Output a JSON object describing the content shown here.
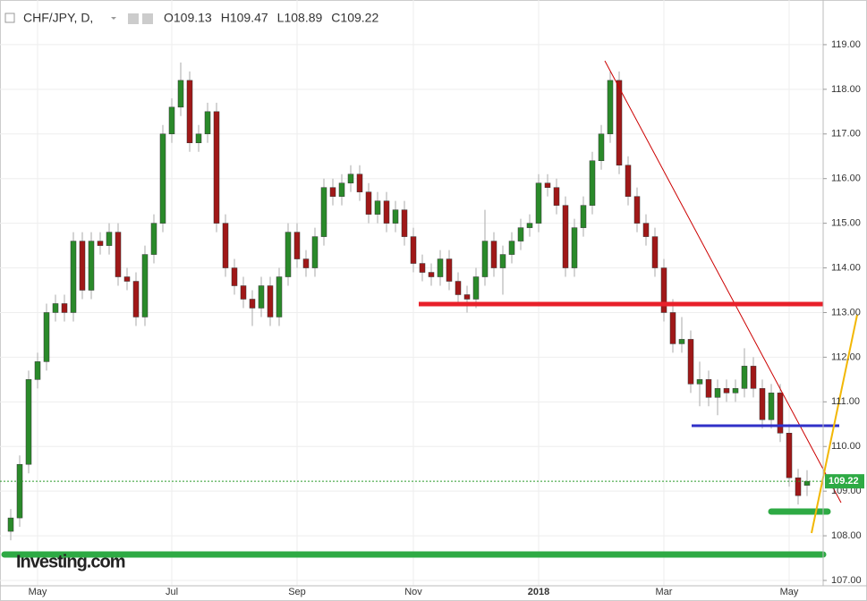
{
  "chart_data": {
    "type": "candlestick",
    "title": "CHF/JPY, D,",
    "quote": [
      {
        "label": "O",
        "value": 109.13
      },
      {
        "label": "H",
        "value": 109.47
      },
      {
        "label": "L",
        "value": 108.89
      },
      {
        "label": "C",
        "value": 109.22
      }
    ],
    "watermark": "Investing.com",
    "categories": [
      null,
      null,
      null,
      "May",
      null,
      null,
      null,
      null,
      null,
      null,
      null,
      null,
      null,
      null,
      null,
      null,
      null,
      null,
      "Jul",
      null,
      null,
      null,
      null,
      null,
      null,
      null,
      null,
      null,
      null,
      null,
      null,
      null,
      "Sep",
      null,
      null,
      null,
      null,
      null,
      null,
      null,
      null,
      null,
      null,
      null,
      null,
      "Nov",
      null,
      null,
      null,
      null,
      null,
      null,
      null,
      null,
      null,
      null,
      null,
      null,
      null,
      "2018",
      null,
      null,
      null,
      null,
      null,
      null,
      null,
      null,
      null,
      null,
      null,
      null,
      null,
      "Mar",
      null,
      null,
      null,
      null,
      null,
      null,
      null,
      null,
      null,
      null,
      null,
      null,
      null,
      "May",
      null,
      null
    ],
    "open": [
      108.1,
      108.4,
      109.6,
      111.5,
      111.9,
      113.0,
      113.2,
      113.0,
      114.6,
      113.5,
      114.6,
      114.5,
      114.8,
      113.8,
      113.7,
      112.9,
      114.3,
      115.0,
      117.0,
      117.6,
      118.2,
      116.8,
      117.0,
      117.5,
      115.0,
      114.0,
      113.6,
      113.3,
      113.1,
      113.6,
      112.9,
      113.8,
      114.8,
      114.2,
      114.0,
      114.7,
      115.8,
      115.6,
      115.9,
      116.1,
      115.7,
      115.2,
      115.5,
      115.0,
      115.3,
      114.7,
      114.1,
      113.9,
      113.8,
      114.2,
      113.7,
      113.4,
      113.3,
      113.8,
      114.6,
      114.0,
      114.3,
      114.6,
      114.9,
      115.0,
      115.9,
      115.8,
      115.4,
      114.0,
      114.9,
      115.4,
      116.4,
      117.0,
      118.2,
      116.3,
      115.6,
      115.0,
      114.7,
      114.0,
      113.0,
      112.3,
      112.4,
      111.4,
      111.5,
      111.1,
      111.3,
      111.2,
      111.3,
      111.8,
      111.3,
      110.6,
      111.2,
      110.3,
      109.3,
      109.13
    ],
    "high": [
      108.6,
      109.8,
      111.7,
      112.1,
      113.2,
      113.4,
      113.4,
      114.8,
      114.8,
      114.8,
      114.8,
      115.0,
      115.0,
      114.0,
      113.9,
      114.5,
      115.2,
      117.2,
      117.8,
      118.6,
      118.4,
      117.2,
      117.7,
      117.7,
      115.2,
      114.2,
      113.8,
      113.5,
      113.8,
      113.8,
      114.0,
      115.0,
      115.0,
      114.4,
      114.9,
      116.0,
      116.0,
      116.1,
      116.3,
      116.3,
      115.9,
      115.7,
      115.7,
      115.5,
      115.5,
      114.9,
      114.3,
      114.1,
      114.4,
      114.4,
      113.9,
      113.6,
      114.0,
      115.3,
      114.8,
      114.5,
      114.8,
      115.1,
      115.2,
      116.1,
      116.1,
      116.0,
      115.6,
      115.1,
      115.6,
      116.6,
      117.2,
      118.4,
      118.4,
      116.5,
      115.8,
      115.2,
      114.9,
      114.2,
      113.3,
      112.9,
      112.6,
      111.9,
      111.7,
      111.5,
      111.5,
      111.5,
      112.2,
      112.0,
      111.5,
      111.4,
      111.4,
      110.5,
      109.5,
      109.47
    ],
    "low": [
      107.9,
      108.2,
      109.4,
      111.3,
      111.7,
      112.8,
      112.8,
      112.8,
      113.3,
      113.3,
      114.3,
      114.3,
      113.6,
      113.5,
      112.7,
      112.7,
      114.1,
      114.8,
      116.8,
      117.4,
      116.6,
      116.6,
      116.8,
      114.8,
      113.8,
      113.4,
      113.1,
      112.7,
      112.9,
      112.7,
      112.7,
      113.6,
      114.0,
      113.8,
      113.8,
      114.5,
      115.4,
      115.4,
      115.7,
      115.5,
      115.0,
      115.0,
      114.8,
      114.8,
      114.5,
      113.9,
      113.7,
      113.6,
      113.6,
      113.5,
      113.2,
      113.0,
      113.1,
      113.6,
      113.8,
      113.4,
      114.1,
      114.4,
      114.7,
      114.8,
      115.6,
      115.2,
      113.8,
      113.8,
      114.7,
      115.2,
      116.2,
      116.8,
      116.1,
      115.4,
      114.8,
      114.5,
      113.8,
      112.8,
      112.1,
      112.1,
      111.2,
      110.9,
      110.9,
      110.7,
      111.0,
      111.0,
      111.1,
      111.1,
      110.4,
      110.4,
      110.1,
      109.1,
      108.7,
      108.89
    ],
    "close": [
      108.4,
      109.6,
      111.5,
      111.9,
      113.0,
      113.2,
      113.0,
      114.6,
      113.5,
      114.6,
      114.5,
      114.8,
      113.8,
      113.7,
      112.9,
      114.3,
      115.0,
      117.0,
      117.6,
      118.2,
      116.8,
      117.0,
      117.5,
      115.0,
      114.0,
      113.6,
      113.3,
      113.1,
      113.6,
      112.9,
      113.8,
      114.8,
      114.2,
      114.0,
      114.7,
      115.8,
      115.6,
      115.9,
      116.1,
      115.7,
      115.2,
      115.5,
      115.0,
      115.3,
      114.7,
      114.1,
      113.9,
      113.8,
      114.2,
      113.7,
      113.4,
      113.3,
      113.8,
      114.6,
      114.0,
      114.3,
      114.6,
      114.9,
      115.0,
      115.9,
      115.8,
      115.4,
      114.0,
      114.9,
      115.4,
      116.4,
      117.0,
      118.2,
      116.3,
      115.6,
      115.0,
      114.7,
      114.0,
      113.0,
      112.3,
      112.4,
      111.4,
      111.5,
      111.1,
      111.3,
      111.2,
      111.3,
      111.8,
      111.3,
      110.6,
      111.2,
      110.3,
      109.3,
      108.9,
      109.22
    ],
    "up_color": "#2a8a2a",
    "down_color": "#a01818",
    "ylim": [
      106.9,
      119.9
    ],
    "yticks": [
      {
        "value": 107,
        "label": "107.00"
      },
      {
        "value": 108,
        "label": "108.00"
      },
      {
        "value": 109,
        "label": "109.00"
      },
      {
        "value": 110,
        "label": "110.00"
      },
      {
        "value": 111,
        "label": "111.00"
      },
      {
        "value": 112,
        "label": "112.00"
      },
      {
        "value": 113,
        "label": "113.00"
      },
      {
        "value": 114,
        "label": "114.00"
      },
      {
        "value": 115,
        "label": "115.00"
      },
      {
        "value": 116,
        "label": "116.00"
      },
      {
        "value": 117,
        "label": "117.00"
      },
      {
        "value": 118,
        "label": "118.00"
      },
      {
        "value": 119,
        "label": "119.00"
      }
    ],
    "grid": true
  }
}
